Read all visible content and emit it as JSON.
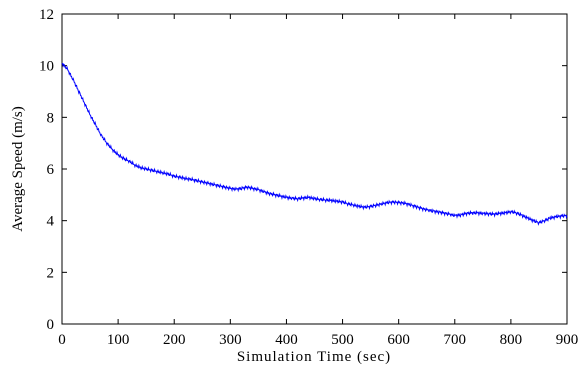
{
  "chart_data": {
    "type": "line",
    "title": "",
    "xlabel": "Simulation Time (sec)",
    "ylabel": "Average Speed (m/s)",
    "xlim": [
      0,
      900
    ],
    "ylim": [
      0,
      12
    ],
    "xticks": [
      0,
      100,
      200,
      300,
      400,
      500,
      600,
      700,
      800,
      900
    ],
    "yticks": [
      0,
      2,
      4,
      6,
      8,
      10,
      12
    ],
    "grid": false,
    "legend": "none",
    "series": [
      {
        "color": "#0000ff",
        "x": [
          0,
          10,
          20,
          30,
          40,
          50,
          60,
          70,
          80,
          90,
          100,
          110,
          120,
          130,
          140,
          150,
          160,
          170,
          180,
          190,
          200,
          210,
          220,
          230,
          240,
          250,
          260,
          270,
          280,
          290,
          300,
          310,
          320,
          330,
          340,
          350,
          360,
          370,
          380,
          390,
          400,
          410,
          420,
          430,
          440,
          450,
          460,
          470,
          480,
          490,
          500,
          510,
          520,
          530,
          540,
          550,
          560,
          570,
          580,
          590,
          600,
          610,
          620,
          630,
          640,
          650,
          660,
          670,
          680,
          690,
          700,
          710,
          720,
          730,
          740,
          750,
          760,
          770,
          780,
          790,
          800,
          810,
          820,
          830,
          840,
          850,
          860,
          870,
          880,
          890,
          900
        ],
        "y": [
          10.1,
          9.85,
          9.45,
          9.0,
          8.55,
          8.1,
          7.7,
          7.3,
          7.0,
          6.75,
          6.55,
          6.4,
          6.3,
          6.15,
          6.05,
          6.0,
          5.95,
          5.9,
          5.85,
          5.8,
          5.72,
          5.68,
          5.63,
          5.6,
          5.55,
          5.5,
          5.45,
          5.4,
          5.35,
          5.3,
          5.25,
          5.22,
          5.25,
          5.3,
          5.25,
          5.2,
          5.12,
          5.05,
          5.0,
          4.95,
          4.9,
          4.87,
          4.85,
          4.88,
          4.9,
          4.85,
          4.82,
          4.8,
          4.78,
          4.75,
          4.72,
          4.65,
          4.6,
          4.55,
          4.52,
          4.55,
          4.6,
          4.65,
          4.7,
          4.72,
          4.7,
          4.68,
          4.62,
          4.55,
          4.48,
          4.42,
          4.38,
          4.34,
          4.3,
          4.25,
          4.2,
          4.22,
          4.28,
          4.3,
          4.3,
          4.28,
          4.27,
          4.25,
          4.28,
          4.3,
          4.35,
          4.3,
          4.2,
          4.1,
          4.0,
          3.92,
          4.0,
          4.1,
          4.15,
          4.18,
          4.2
        ]
      }
    ]
  }
}
